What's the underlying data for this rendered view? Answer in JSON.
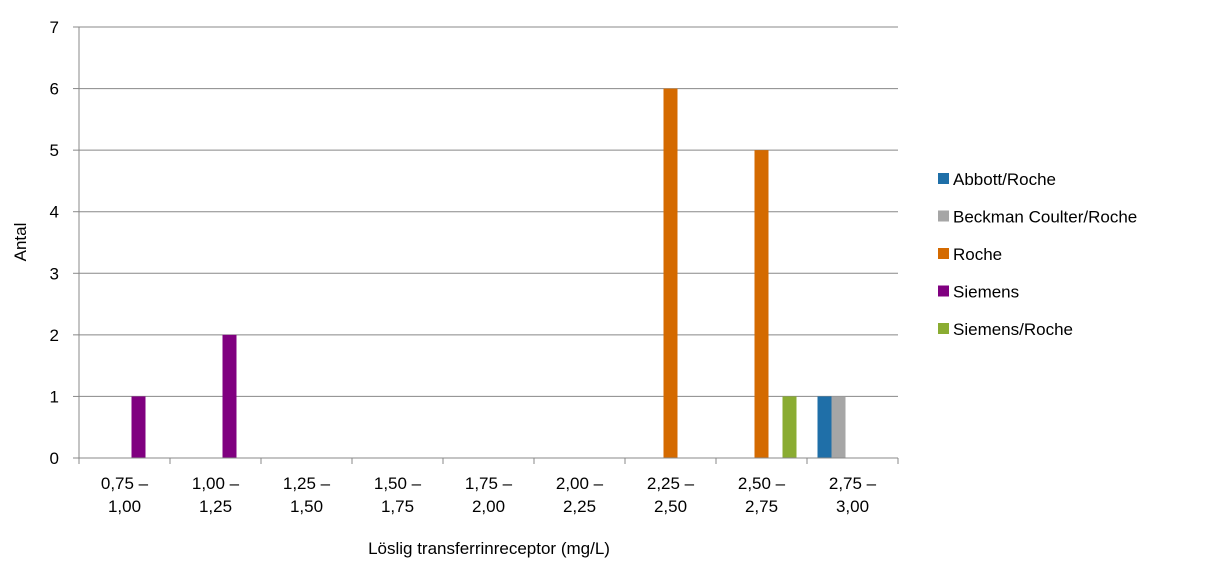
{
  "chart_data": {
    "type": "bar",
    "title": "",
    "xlabel": "Löslig transferrinreceptor (mg/L)",
    "ylabel": "Antal",
    "ylim": [
      0,
      7
    ],
    "yticks": [
      "0",
      "1",
      "2",
      "3",
      "4",
      "5",
      "6",
      "7"
    ],
    "grid": true,
    "legend_position": "right",
    "categories": [
      [
        "0,75 –",
        "1,00"
      ],
      [
        "1,00 –",
        "1,25"
      ],
      [
        "1,25 –",
        "1,50"
      ],
      [
        "1,50 –",
        "1,75"
      ],
      [
        "1,75 –",
        "2,00"
      ],
      [
        "2,00 –",
        "2,25"
      ],
      [
        "2,25 –",
        "2,50"
      ],
      [
        "2,50 –",
        "2,75"
      ],
      [
        "2,75 –",
        "3,00"
      ]
    ],
    "series": [
      {
        "name": "Abbott/Roche",
        "color": "#1f6fa8",
        "values": [
          0,
          0,
          0,
          0,
          0,
          0,
          0,
          0,
          1
        ]
      },
      {
        "name": "Beckman Coulter/Roche",
        "color": "#a6a6a6",
        "values": [
          0,
          0,
          0,
          0,
          0,
          0,
          0,
          0,
          1
        ]
      },
      {
        "name": "Roche",
        "color": "#d46a00",
        "values": [
          0,
          0,
          0,
          0,
          0,
          0,
          6,
          5,
          0
        ]
      },
      {
        "name": "Siemens",
        "color": "#800080",
        "values": [
          1,
          2,
          0,
          0,
          0,
          0,
          0,
          0,
          0
        ]
      },
      {
        "name": "Siemens/Roche",
        "color": "#8aac32",
        "values": [
          0,
          0,
          0,
          0,
          0,
          0,
          0,
          1,
          0
        ]
      }
    ]
  }
}
